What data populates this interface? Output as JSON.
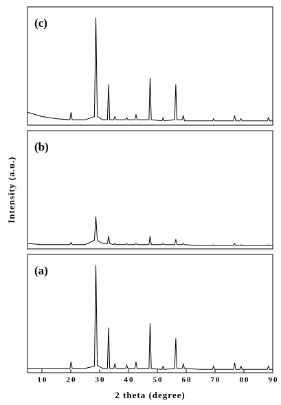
{
  "chart_data": [
    {
      "type": "line",
      "label": "(c)",
      "color": "#000000",
      "xlim": [
        5,
        90
      ],
      "ylim": [
        0,
        110
      ],
      "x": [
        5,
        10,
        15,
        19.7,
        20.1,
        20.5,
        25,
        28.2,
        28.7,
        29.2,
        31,
        32.7,
        33.1,
        33.5,
        34.9,
        35.3,
        35.7,
        39,
        39.4,
        39.8,
        42.2,
        42.6,
        43,
        47.1,
        47.5,
        47.9,
        51.6,
        52,
        52.4,
        56,
        56.4,
        56.8,
        58.6,
        59,
        59.4,
        65,
        69.1,
        69.5,
        69.9,
        76.4,
        76.8,
        77.2,
        78.6,
        79,
        79.4,
        85,
        88.1,
        88.5,
        88.9,
        90
      ],
      "values": [
        12,
        8,
        6,
        5,
        12,
        5,
        5,
        8,
        100,
        8,
        5,
        5,
        38,
        5,
        5,
        8,
        5,
        5,
        7,
        5,
        5,
        10,
        5,
        5,
        44,
        5,
        4,
        7,
        4,
        5,
        38,
        5,
        5,
        9,
        4,
        4,
        4,
        6,
        4,
        4,
        9,
        4,
        4,
        6,
        4,
        4,
        4,
        7,
        4,
        4
      ]
    },
    {
      "type": "line",
      "label": "(b)",
      "ylabel": "Intensity (a.u.)",
      "color": "#000000",
      "xlim": [
        5,
        90
      ],
      "ylim": [
        0,
        110
      ],
      "x": [
        5,
        10,
        15,
        19.7,
        20.1,
        20.5,
        25,
        28.2,
        28.7,
        29.2,
        31,
        32.7,
        33.1,
        33.5,
        34.9,
        35.3,
        35.7,
        39,
        39.4,
        39.8,
        42.2,
        42.6,
        43,
        47.1,
        47.5,
        47.9,
        51.6,
        52,
        52.4,
        56,
        56.4,
        56.8,
        58.6,
        59,
        59.4,
        65,
        69.1,
        69.5,
        69.9,
        76.4,
        76.8,
        77.2,
        78.6,
        79,
        79.4,
        85,
        88.1,
        88.5,
        88.9,
        90
      ],
      "values": [
        5,
        4,
        4,
        4,
        6,
        4,
        4,
        8,
        30,
        8,
        5,
        5,
        12,
        5,
        4,
        5,
        4,
        4,
        5,
        4,
        4,
        5,
        4,
        4,
        12,
        4,
        4,
        5,
        4,
        4,
        9,
        4,
        4,
        5,
        4,
        3,
        3,
        4,
        3,
        3,
        5,
        3,
        3,
        4,
        3,
        3,
        3,
        4,
        3,
        3
      ]
    },
    {
      "type": "line",
      "label": "(a)",
      "xlabel": "2 theta (degree)",
      "color": "#000000",
      "xlim": [
        5,
        90
      ],
      "ylim": [
        0,
        110
      ],
      "xticks": [
        10,
        20,
        30,
        40,
        50,
        60,
        70,
        80,
        90
      ],
      "x": [
        5,
        10,
        15,
        19.7,
        20.1,
        20.5,
        25,
        28.2,
        28.7,
        29.2,
        31,
        32.7,
        33.1,
        33.5,
        34.9,
        35.3,
        35.7,
        39,
        39.4,
        39.8,
        42.2,
        42.6,
        43,
        47.1,
        47.5,
        47.9,
        51.6,
        52,
        52.4,
        56,
        56.4,
        56.8,
        58.6,
        59,
        59.4,
        65,
        69.1,
        69.5,
        69.9,
        76.4,
        76.8,
        77.2,
        78.6,
        79,
        79.4,
        85,
        88.1,
        88.5,
        88.9,
        90
      ],
      "values": [
        4,
        4,
        4,
        4,
        10,
        4,
        4,
        6,
        100,
        7,
        4,
        4,
        42,
        4,
        4,
        8,
        4,
        4,
        7,
        4,
        4,
        10,
        4,
        4,
        46,
        4,
        3,
        6,
        3,
        4,
        32,
        4,
        4,
        8,
        4,
        3,
        3,
        6,
        3,
        3,
        9,
        3,
        3,
        6,
        3,
        3,
        3,
        6,
        3,
        3
      ]
    }
  ]
}
